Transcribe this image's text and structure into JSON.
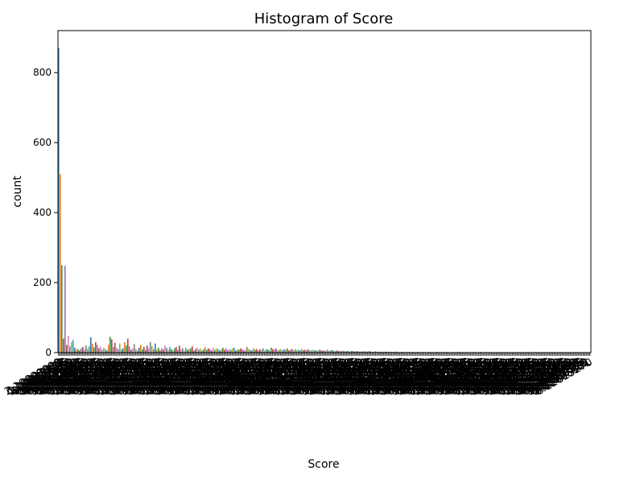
{
  "chart_data": {
    "type": "bar",
    "title": "Histogram of Score",
    "xlabel": "Score",
    "ylabel": "count",
    "ylim": [
      0,
      920
    ],
    "yticks": [
      0,
      200,
      400,
      600,
      800
    ],
    "grid": false,
    "legend": "none",
    "x_tick_labels_overlapping": true,
    "x_tick_label_samples": [
      "2",
      "6",
      "1",
      "2",
      "6",
      "8",
      "6",
      "6",
      "3",
      "1",
      "5",
      "6",
      "6",
      "6",
      "8",
      "7",
      "1",
      "3",
      "6",
      "6",
      "3",
      "8",
      "6",
      "6",
      "4",
      "8",
      "6",
      "8"
    ],
    "bar_count": 320,
    "values": [
      870,
      510,
      250,
      40,
      248,
      22,
      48,
      18,
      30,
      36,
      14,
      8,
      10,
      6,
      12,
      16,
      9,
      20,
      11,
      18,
      44,
      25,
      15,
      30,
      22,
      12,
      18,
      8,
      14,
      10,
      6,
      22,
      45,
      38,
      16,
      28,
      14,
      10,
      26,
      9,
      12,
      30,
      20,
      40,
      18,
      8,
      12,
      24,
      10,
      6,
      14,
      22,
      9,
      16,
      8,
      20,
      12,
      30,
      18,
      10,
      26,
      8,
      14,
      6,
      12,
      9,
      20,
      14,
      8,
      16,
      10,
      6,
      12,
      16,
      8,
      20,
      10,
      12,
      6,
      14,
      8,
      10,
      12,
      18,
      6,
      10,
      14,
      8,
      12,
      6,
      9,
      16,
      8,
      12,
      10,
      6,
      14,
      8,
      12,
      10,
      6,
      9,
      14,
      8,
      12,
      6,
      10,
      8,
      12,
      14,
      6,
      9,
      8,
      12,
      10,
      6,
      8,
      16,
      10,
      8,
      6,
      12,
      8,
      10,
      6,
      9,
      8,
      12,
      6,
      10,
      8,
      6,
      14,
      10,
      8,
      12,
      6,
      8,
      10,
      6,
      9,
      8,
      12,
      6,
      8,
      10,
      6,
      9,
      7,
      8,
      6,
      10,
      7,
      8,
      6,
      9,
      7,
      6,
      8,
      7,
      6,
      5,
      8,
      6,
      7,
      5,
      6,
      8,
      5,
      6,
      7,
      5,
      4,
      6,
      5,
      4,
      6,
      5,
      4,
      5,
      4,
      3,
      5,
      4,
      3,
      4,
      5,
      3,
      4,
      3,
      4,
      3,
      3,
      4,
      3,
      2,
      3,
      4,
      2,
      3,
      2,
      3,
      2,
      3,
      2,
      2,
      3,
      2,
      2,
      3,
      2,
      2,
      1,
      2,
      2,
      1,
      2,
      1,
      2,
      1,
      2,
      1,
      1,
      2,
      1,
      1,
      2,
      1,
      1,
      1,
      2,
      1,
      1,
      1,
      1,
      2,
      1,
      1,
      1,
      1,
      1,
      2,
      1,
      1,
      1,
      1,
      1,
      1,
      1,
      2,
      1,
      1,
      1,
      1,
      1,
      1,
      1,
      1,
      1,
      1,
      1,
      1,
      2,
      1,
      1,
      1,
      1,
      1,
      1,
      1,
      1,
      1,
      1,
      1,
      1,
      1,
      1,
      1,
      1,
      1,
      1,
      1,
      1,
      1,
      1,
      1,
      1,
      1,
      1,
      1,
      1,
      1,
      1,
      1,
      1,
      1,
      1,
      1,
      1,
      1,
      1,
      1,
      1,
      1,
      1,
      1,
      1,
      1,
      1,
      1,
      1,
      1,
      1,
      1,
      1,
      1,
      1,
      1,
      1,
      1,
      1,
      1,
      1,
      1,
      1,
      1,
      1,
      1,
      1,
      1,
      1
    ],
    "palette": [
      "#3274a1",
      "#e1812c",
      "#3a923a",
      "#c03d3e",
      "#9372b2",
      "#845b53",
      "#d684bd",
      "#7f7f7f",
      "#a9aa35",
      "#2eabb8"
    ]
  }
}
